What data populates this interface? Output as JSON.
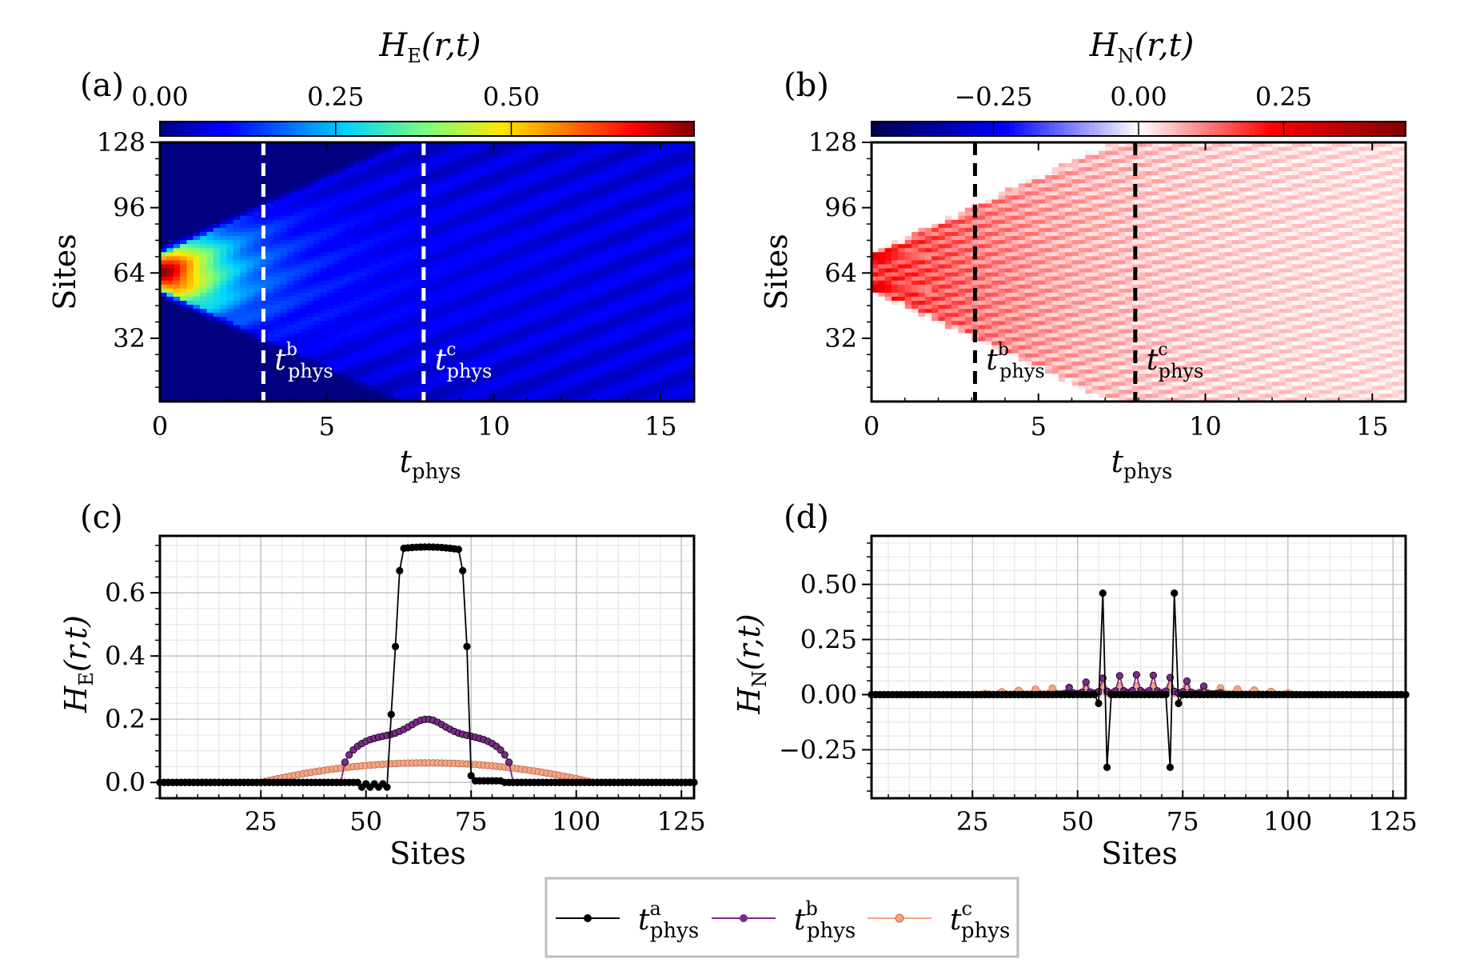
{
  "chart_data": [
    {
      "id": "a",
      "panel_label": "(a)",
      "type": "heatmap",
      "colorbar": {
        "title_main": "H",
        "title_sub": "E",
        "title_args": "(r,t)",
        "ticks": [
          0.0,
          0.25,
          0.5
        ],
        "tick_labels": [
          "0.00",
          "0.25",
          "0.50"
        ],
        "range": [
          0.0,
          0.76
        ],
        "colormap": "jet"
      },
      "xlabel_main": "t",
      "xlabel_sub": "phys",
      "ylabel": "Sites",
      "xlim": [
        0,
        16
      ],
      "ylim": [
        1,
        128
      ],
      "xticks": [
        0,
        5,
        10,
        15
      ],
      "xtick_labels": [
        "0",
        "5",
        "10",
        "15"
      ],
      "yticks": [
        32,
        64,
        96,
        128
      ],
      "ytick_labels": [
        "32",
        "64",
        "96",
        "128"
      ],
      "vlines": [
        {
          "x": 3.1,
          "label_main": "t",
          "label_sup": "b",
          "label_sub": "phys",
          "color": "#ffffff"
        },
        {
          "x": 7.9,
          "label_main": "t",
          "label_sup": "c",
          "label_sub": "phys",
          "color": "#ffffff"
        }
      ]
    },
    {
      "id": "b",
      "panel_label": "(b)",
      "type": "heatmap",
      "colorbar": {
        "title_main": "H",
        "title_sub": "N",
        "title_args": "(r,t)",
        "ticks": [
          -0.25,
          0.0,
          0.25
        ],
        "tick_labels": [
          "−0.25",
          "0.00",
          "0.25"
        ],
        "range": [
          -0.46,
          0.46
        ],
        "colormap": "seismic"
      },
      "xlabel_main": "t",
      "xlabel_sub": "phys",
      "ylabel": "Sites",
      "xlim": [
        0,
        16
      ],
      "ylim": [
        1,
        128
      ],
      "xticks": [
        0,
        5,
        10,
        15
      ],
      "xtick_labels": [
        "0",
        "5",
        "10",
        "15"
      ],
      "yticks": [
        32,
        64,
        96,
        128
      ],
      "ytick_labels": [
        "32",
        "64",
        "96",
        "128"
      ],
      "vlines": [
        {
          "x": 3.1,
          "label_main": "t",
          "label_sup": "b",
          "label_sub": "phys",
          "color": "#000000"
        },
        {
          "x": 7.9,
          "label_main": "t",
          "label_sup": "c",
          "label_sub": "phys",
          "color": "#000000"
        }
      ]
    },
    {
      "id": "c",
      "panel_label": "(c)",
      "type": "line",
      "xlabel": "Sites",
      "ylabel_main": "H",
      "ylabel_sub": "E",
      "ylabel_args": "(r,t)",
      "xlim": [
        1,
        128
      ],
      "ylim": [
        -0.05,
        0.78
      ],
      "xticks": [
        25,
        50,
        75,
        100,
        125
      ],
      "xtick_labels": [
        "25",
        "50",
        "75",
        "100",
        "125"
      ],
      "yticks": [
        0.0,
        0.2,
        0.4,
        0.6
      ],
      "ytick_labels": [
        "0.0",
        "0.2",
        "0.4",
        "0.6"
      ],
      "series": [
        {
          "name": "t_phys^a",
          "color": "#000000",
          "profile": {
            "kind": "box",
            "left": 56,
            "right": 73,
            "plateau": 0.745,
            "edge1": 0.43,
            "edge2": 0.67
          }
        },
        {
          "name": "t_phys^b",
          "color": "#7b2a8c",
          "profile": {
            "kind": "hump",
            "center": 64.5,
            "peak": 0.2,
            "shoulder": 0.15,
            "start": 44,
            "end": 85
          }
        },
        {
          "name": "t_phys^c",
          "color": "#f4a582",
          "profile": {
            "kind": "wide",
            "center": 64.5,
            "peak": 0.062,
            "start": 25,
            "end": 104
          }
        }
      ]
    },
    {
      "id": "d",
      "panel_label": "(d)",
      "type": "line",
      "xlabel": "Sites",
      "ylabel_main": "H",
      "ylabel_sub": "N",
      "ylabel_args": "(r,t)",
      "xlim": [
        1,
        128
      ],
      "ylim": [
        -0.47,
        0.72
      ],
      "xticks": [
        25,
        50,
        75,
        100,
        125
      ],
      "xtick_labels": [
        "25",
        "50",
        "75",
        "100",
        "125"
      ],
      "yticks": [
        -0.25,
        0.0,
        0.25,
        0.5
      ],
      "ytick_labels": [
        "−0.25",
        "0.00",
        "0.25",
        "0.50"
      ],
      "series": [
        {
          "name": "t_phys^a",
          "color": "#000000",
          "profile": {
            "kind": "spikes",
            "left": 56,
            "right": 72,
            "spike": 0.46,
            "dip": -0.33,
            "inner": 0.0
          }
        },
        {
          "name": "t_phys^b",
          "color": "#7b2a8c",
          "profile": {
            "kind": "osc",
            "center": 64.5,
            "amp": 0.09,
            "start": 44,
            "end": 85
          }
        },
        {
          "name": "t_phys^c",
          "color": "#f4a582",
          "profile": {
            "kind": "osc",
            "center": 64.5,
            "amp": 0.04,
            "start": 25,
            "end": 104
          }
        }
      ]
    }
  ],
  "legend": {
    "entries": [
      {
        "main": "t",
        "sup": "a",
        "sub": "phys",
        "color": "#000000",
        "fill": "#000000"
      },
      {
        "main": "t",
        "sup": "b",
        "sub": "phys",
        "color": "#7b2a8c",
        "fill": "#7b2a8c"
      },
      {
        "main": "t",
        "sup": "c",
        "sub": "phys",
        "color": "#f4a582",
        "fill": "#f4a582"
      }
    ]
  }
}
